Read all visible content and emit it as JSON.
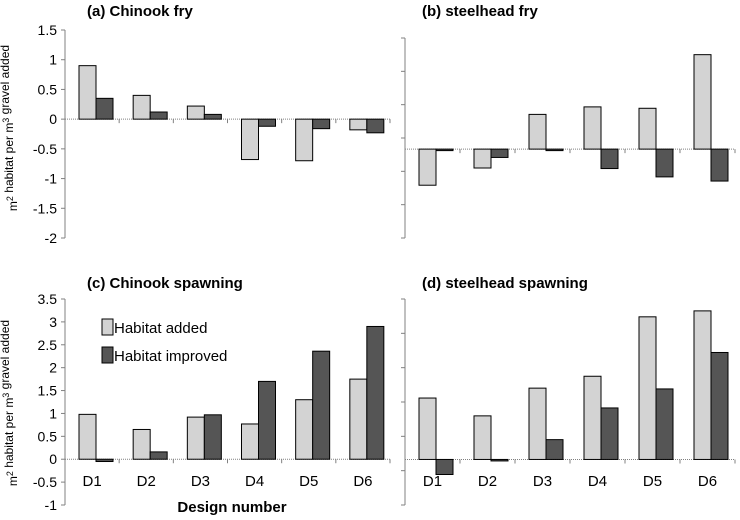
{
  "colors": {
    "habitat_added": "#d3d3d3",
    "habitat_improved": "#555555"
  },
  "legend": {
    "added_label": "Habitat added",
    "improved_label": "Habitat improved",
    "placement": "top-left of panel (c)"
  },
  "x_axis_label": "Design number",
  "y_axis_label_top": "m² habitat per m³ gravel added",
  "y_axis_label_bottom": "m² habitat per m³ gravel added",
  "chart_data": [
    {
      "type": "bar",
      "title": "(a) Chinook fry",
      "categories": [
        "D1",
        "D2",
        "D3",
        "D4",
        "D5",
        "D6"
      ],
      "series": [
        {
          "name": "Habitat added",
          "values": [
            0.9,
            0.4,
            0.22,
            -0.68,
            -0.7,
            -0.18
          ]
        },
        {
          "name": "Habitat improved",
          "values": [
            0.35,
            0.12,
            0.08,
            -0.12,
            -0.16,
            -0.23
          ]
        }
      ],
      "ylim": [
        -2,
        1.5
      ],
      "yticks": [
        "1.5",
        "1",
        "0.5",
        "0",
        "-0.5",
        "-1",
        "-1.5",
        "-2"
      ],
      "show_category_labels": false,
      "show_tick_labels": true,
      "grid": false
    },
    {
      "type": "bar",
      "title": "(b) steelhead fry",
      "categories": [
        "D1",
        "D2",
        "D3",
        "D4",
        "D5",
        "D6"
      ],
      "series": [
        {
          "name": "Habitat added",
          "values": [
            -1.3,
            -0.68,
            1.25,
            1.52,
            1.47,
            3.4
          ]
        },
        {
          "name": "Habitat improved",
          "values": [
            -0.03,
            -0.3,
            -0.05,
            -0.7,
            -1.0,
            -1.15
          ]
        }
      ],
      "ylim": [
        -3.2,
        4
      ],
      "yticks": [],
      "show_category_labels": false,
      "show_tick_labels": false,
      "grid": false
    },
    {
      "type": "bar",
      "title": "(c) Chinook spawning",
      "categories": [
        "D1",
        "D2",
        "D3",
        "D4",
        "D5",
        "D6"
      ],
      "series": [
        {
          "name": "Habitat added",
          "values": [
            0.98,
            0.65,
            0.92,
            0.77,
            1.3,
            1.75
          ]
        },
        {
          "name": "Habitat improved",
          "values": [
            -0.05,
            0.16,
            0.97,
            1.7,
            2.36,
            2.9
          ]
        }
      ],
      "ylim": [
        -1,
        3.5
      ],
      "yticks": [
        "3.5",
        "3",
        "2.5",
        "2",
        "1.5",
        "1",
        "0.5",
        "0",
        "-0.5",
        "-1"
      ],
      "show_category_labels": true,
      "show_tick_labels": true,
      "grid": false
    },
    {
      "type": "bar",
      "title": "(d) steelhead spawning",
      "categories": [
        "D1",
        "D2",
        "D3",
        "D4",
        "D5",
        "D6"
      ],
      "series": [
        {
          "name": "Habitat added",
          "values": [
            1.55,
            1.1,
            1.8,
            2.1,
            3.6,
            3.75
          ]
        },
        {
          "name": "Habitat improved",
          "values": [
            -0.38,
            -0.02,
            0.5,
            1.3,
            1.78,
            2.7
          ]
        }
      ],
      "ylim": [
        -1.15,
        4.05
      ],
      "yticks": [],
      "show_category_labels": true,
      "show_tick_labels": false,
      "grid": false
    }
  ]
}
